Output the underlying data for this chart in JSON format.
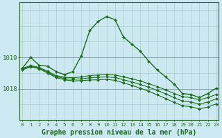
{
  "title": "Graphe pression niveau de la mer (hPa)",
  "background_color": "#cce8f0",
  "line_color": "#1a6b1a",
  "hours": [
    0,
    1,
    2,
    3,
    4,
    5,
    6,
    7,
    8,
    9,
    10,
    11,
    12,
    13,
    14,
    15,
    16,
    17,
    18,
    19,
    20,
    21,
    22,
    23
  ],
  "series": [
    [
      1018.65,
      1019.0,
      1018.75,
      1018.72,
      1018.55,
      1018.45,
      1018.55,
      1019.05,
      1019.85,
      1020.15,
      1020.3,
      1020.2,
      1019.65,
      1019.42,
      1019.2,
      1018.88,
      1018.6,
      1018.38,
      1018.15,
      1017.85,
      1017.82,
      1017.72,
      1017.85,
      1018.02
    ],
    [
      1018.65,
      1018.74,
      1018.68,
      1018.56,
      1018.42,
      1018.37,
      1018.35,
      1018.38,
      1018.42,
      1018.44,
      1018.46,
      1018.44,
      1018.38,
      1018.32,
      1018.25,
      1018.16,
      1018.07,
      1017.97,
      1017.85,
      1017.75,
      1017.72,
      1017.65,
      1017.72,
      1017.82
    ],
    [
      1018.62,
      1018.72,
      1018.66,
      1018.53,
      1018.39,
      1018.33,
      1018.3,
      1018.32,
      1018.35,
      1018.37,
      1018.38,
      1018.36,
      1018.29,
      1018.22,
      1018.14,
      1018.05,
      1017.95,
      1017.84,
      1017.72,
      1017.61,
      1017.58,
      1017.51,
      1017.58,
      1017.68
    ],
    [
      1018.6,
      1018.7,
      1018.64,
      1018.5,
      1018.36,
      1018.29,
      1018.25,
      1018.26,
      1018.28,
      1018.29,
      1018.3,
      1018.27,
      1018.19,
      1018.11,
      1018.02,
      1017.92,
      1017.81,
      1017.69,
      1017.57,
      1017.46,
      1017.43,
      1017.36,
      1017.42,
      1017.52
    ]
  ],
  "yticks": [
    1018,
    1019
  ],
  "ylim": [
    1017.0,
    1020.75
  ],
  "border_color": "#2d6e2d",
  "tick_color": "#2d6e2d",
  "hline_color": "#cc8888",
  "vline_color": "#aacccc"
}
